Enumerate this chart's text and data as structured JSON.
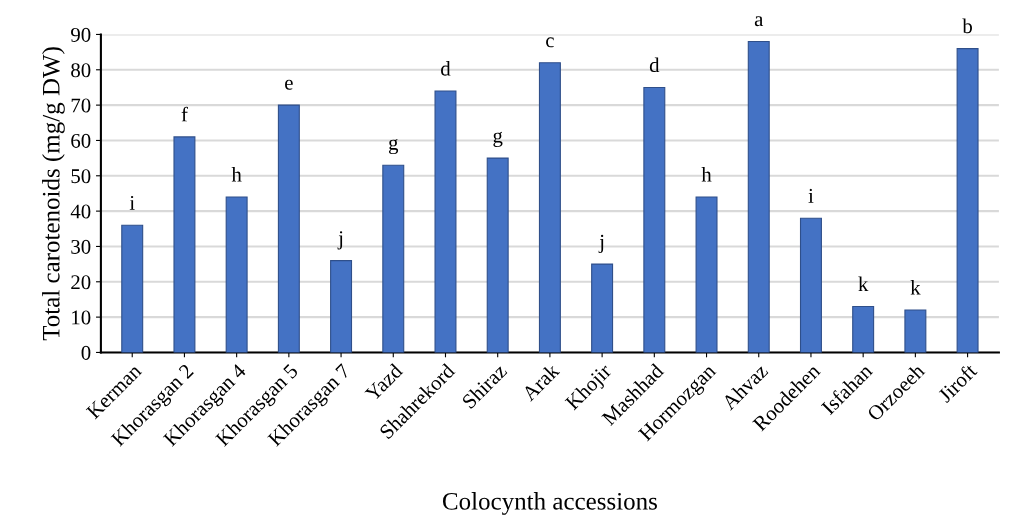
{
  "chart_data": {
    "type": "bar",
    "xlabel": "Colocynth accessions",
    "ylabel": "Total carotenoids (mg/g DW)",
    "categories": [
      "Kerman",
      "Khorasgan 2",
      "Khorasgan 4",
      "Khorasgan 5",
      "Khorasgan 7",
      "Yazd",
      "Shahrekord",
      "Shiraz",
      "Arak",
      "Khojir",
      "Mashhad",
      "Hormozgan",
      "Ahvaz",
      "Roodehen",
      "Isfahan",
      "Orzoeeh",
      "Jiroft"
    ],
    "values": [
      36,
      61,
      44,
      70,
      26,
      53,
      74,
      55,
      82,
      25,
      75,
      44,
      88,
      38,
      13,
      12,
      86
    ],
    "value_labels": [
      "i",
      "f",
      "h",
      "e",
      "j",
      "g",
      "d",
      "g",
      "c",
      "j",
      "d",
      "h",
      "a",
      "i",
      "k",
      "k",
      "b"
    ],
    "color": "#4472c4",
    "ylim": [
      0,
      90
    ],
    "yticks": [
      0,
      10,
      20,
      30,
      40,
      50,
      60,
      70,
      80,
      90
    ],
    "grid": "y",
    "legend": false
  }
}
